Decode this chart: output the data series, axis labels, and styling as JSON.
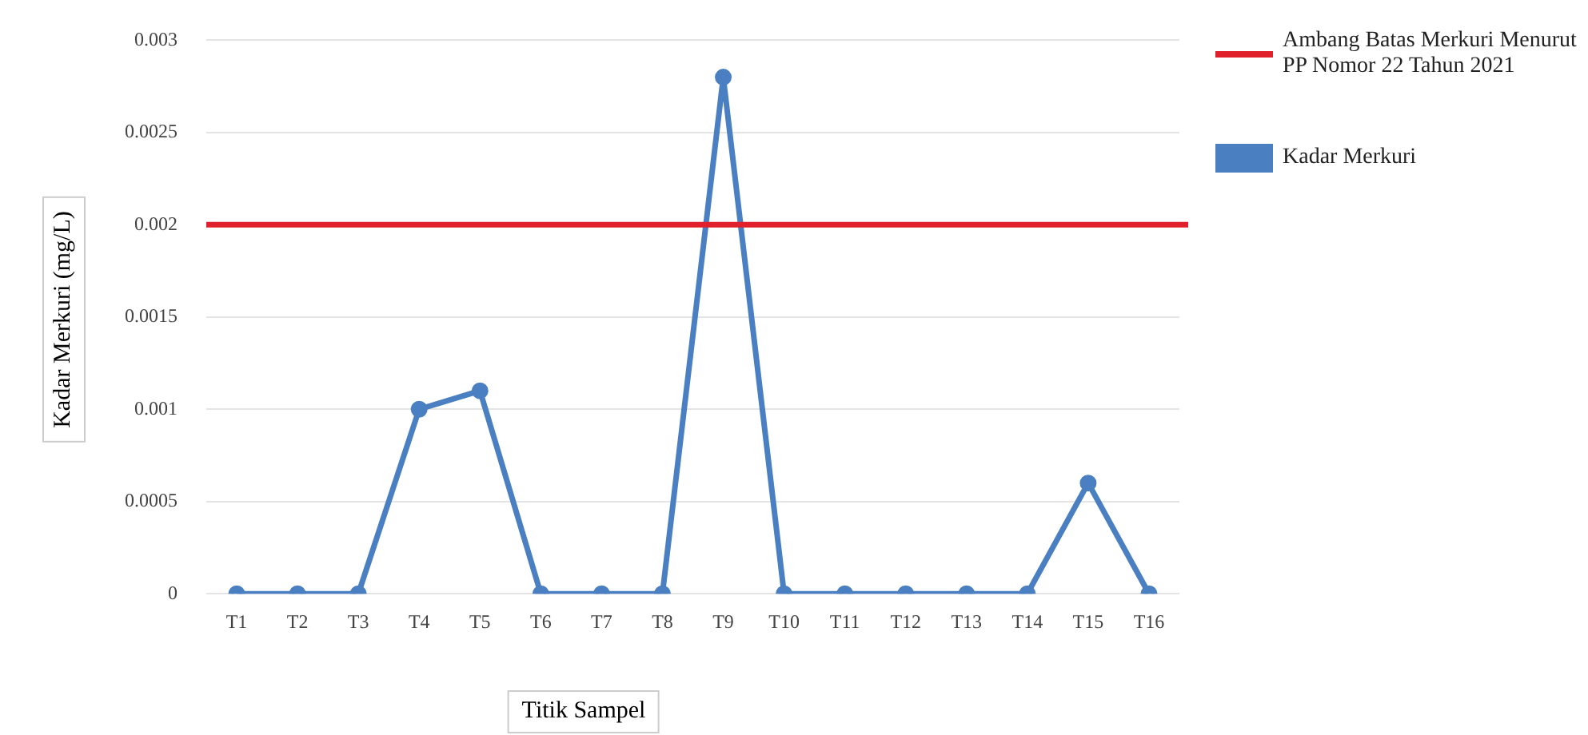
{
  "chart_data": {
    "type": "line",
    "xlabel": "Titik Sampel",
    "ylabel": "Kadar Merkuri (mg/L)",
    "categories": [
      "T1",
      "T2",
      "T3",
      "T4",
      "T5",
      "T6",
      "T7",
      "T8",
      "T9",
      "T10",
      "T11",
      "T12",
      "T13",
      "T14",
      "T15",
      "T16"
    ],
    "series": [
      {
        "name": "Kadar Merkuri",
        "color": "#4a7fc1",
        "values": [
          0,
          0,
          0,
          0.001,
          0.0011,
          0,
          0,
          0,
          0.0028,
          0,
          0,
          0,
          0,
          0,
          0.0006,
          0
        ]
      }
    ],
    "ref_lines": [
      {
        "axis": "y",
        "value": 0.002,
        "label": "Ambang Batas Merkuri Menurut PP Nomor 22 Tahun 2021",
        "color": "#e0202a"
      }
    ],
    "ylim": [
      0,
      0.003
    ],
    "yticks": [
      0,
      0.0005,
      0.001,
      0.0015,
      0.002,
      0.0025,
      0.003
    ],
    "grid": "y",
    "legend": "right",
    "marker": "circle"
  }
}
